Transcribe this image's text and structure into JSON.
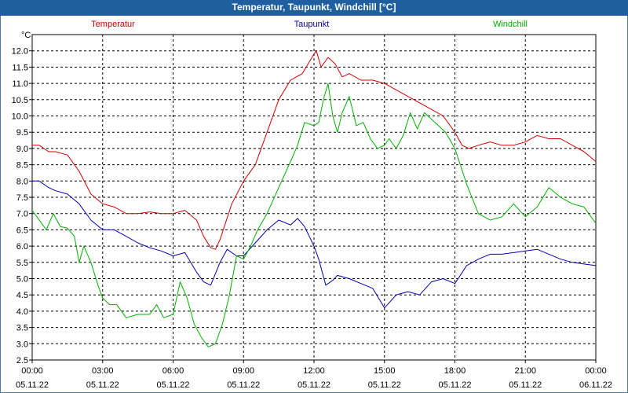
{
  "window": {
    "title": "Temperatur, Taupunkt, Windchill [°C]"
  },
  "chart_data": {
    "type": "line",
    "title": "Temperatur, Taupunkt, Windchill [°C]",
    "ylabel": "°C",
    "ylim": [
      2.5,
      12.5
    ],
    "xlim": [
      0,
      24
    ],
    "grid": true,
    "legend_placement": "top",
    "y_ticks": [
      "2.5",
      "3.0",
      "3.5",
      "4.0",
      "4.5",
      "5.0",
      "5.5",
      "6.0",
      "6.5",
      "7.0",
      "7.5",
      "8.0",
      "8.5",
      "9.0",
      "9.5",
      "10.0",
      "10.5",
      "11.0",
      "11.5",
      "12.0"
    ],
    "x_ticks": [
      {
        "time": "00:00",
        "date": "05.11.22"
      },
      {
        "time": "03:00",
        "date": "05.11.22"
      },
      {
        "time": "06:00",
        "date": "05.11.22"
      },
      {
        "time": "09:00",
        "date": "05.11.22"
      },
      {
        "time": "12:00",
        "date": "05.11.22"
      },
      {
        "time": "15:00",
        "date": "05.11.22"
      },
      {
        "time": "18:00",
        "date": "05.11.22"
      },
      {
        "time": "21:00",
        "date": "05.11.22"
      },
      {
        "time": "00:00",
        "date": "06.11.22"
      }
    ],
    "series": [
      {
        "name": "Temperatur",
        "color": "#d00000",
        "x": [
          0,
          0.3,
          0.7,
          1.0,
          1.5,
          2.0,
          2.5,
          3.0,
          3.5,
          4.0,
          4.5,
          5.0,
          5.5,
          6.0,
          6.5,
          7.0,
          7.3,
          7.6,
          7.8,
          8.0,
          8.5,
          9.0,
          9.5,
          10.0,
          10.5,
          11.0,
          11.5,
          12.0,
          12.1,
          12.3,
          12.6,
          12.9,
          13.2,
          13.5,
          14.0,
          14.5,
          15.0,
          15.5,
          16.0,
          16.5,
          17.0,
          17.5,
          18.0,
          18.3,
          18.6,
          19.0,
          19.5,
          20.0,
          20.5,
          21.0,
          21.5,
          22.0,
          22.5,
          23.0,
          23.5,
          24.0
        ],
        "values": [
          9.1,
          9.1,
          8.9,
          8.9,
          8.8,
          8.3,
          7.6,
          7.3,
          7.2,
          7.0,
          7.0,
          7.05,
          7.0,
          7.0,
          7.1,
          6.8,
          6.3,
          5.95,
          5.9,
          6.2,
          7.3,
          8.0,
          8.5,
          9.5,
          10.5,
          11.1,
          11.3,
          11.9,
          12.0,
          11.5,
          11.8,
          11.6,
          11.2,
          11.3,
          11.1,
          11.1,
          11.0,
          10.8,
          10.6,
          10.4,
          10.2,
          10.0,
          9.5,
          9.1,
          9.0,
          9.1,
          9.2,
          9.1,
          9.1,
          9.2,
          9.4,
          9.3,
          9.3,
          9.1,
          8.9,
          8.6
        ]
      },
      {
        "name": "Taupunkt",
        "color": "#0000b0",
        "x": [
          0,
          0.3,
          0.7,
          1.0,
          1.5,
          2.0,
          2.5,
          3.0,
          3.5,
          4.0,
          4.5,
          5.0,
          5.5,
          6.0,
          6.5,
          7.0,
          7.3,
          7.6,
          8.0,
          8.3,
          8.7,
          9.0,
          9.5,
          10.0,
          10.5,
          11.0,
          11.3,
          11.6,
          12.0,
          12.2,
          12.5,
          12.8,
          13.0,
          13.5,
          14.0,
          14.5,
          15.0,
          15.5,
          16.0,
          16.5,
          17.0,
          17.5,
          18.0,
          18.5,
          19.0,
          19.5,
          20.0,
          20.5,
          21.0,
          21.5,
          22.0,
          22.5,
          23.0,
          23.5,
          24.0
        ],
        "values": [
          8.0,
          8.0,
          7.8,
          7.7,
          7.6,
          7.3,
          6.8,
          6.5,
          6.5,
          6.3,
          6.1,
          5.95,
          5.85,
          5.7,
          5.8,
          5.2,
          4.9,
          4.8,
          5.5,
          5.9,
          5.7,
          5.7,
          6.1,
          6.5,
          6.8,
          6.65,
          6.85,
          6.6,
          6.0,
          5.6,
          4.8,
          4.95,
          5.1,
          5.0,
          4.85,
          4.7,
          4.1,
          4.5,
          4.6,
          4.5,
          4.9,
          5.0,
          4.85,
          5.4,
          5.6,
          5.75,
          5.75,
          5.8,
          5.85,
          5.9,
          5.75,
          5.6,
          5.5,
          5.45,
          5.4
        ]
      },
      {
        "name": "Windchill",
        "color": "#00b000",
        "x": [
          0,
          0.3,
          0.6,
          0.9,
          1.2,
          1.5,
          1.8,
          2.0,
          2.2,
          2.5,
          2.8,
          3.0,
          3.3,
          3.6,
          4.0,
          4.5,
          5.0,
          5.3,
          5.6,
          6.0,
          6.3,
          6.6,
          6.9,
          7.2,
          7.5,
          7.8,
          8.1,
          8.4,
          8.7,
          9.0,
          9.3,
          9.6,
          10.0,
          10.5,
          11.0,
          11.3,
          11.6,
          12.0,
          12.2,
          12.4,
          12.6,
          12.8,
          13.0,
          13.2,
          13.5,
          13.8,
          14.1,
          14.4,
          14.7,
          15.0,
          15.2,
          15.5,
          15.8,
          16.1,
          16.4,
          16.7,
          17.0,
          17.3,
          17.6,
          18.0,
          18.5,
          19.0,
          19.5,
          20.0,
          20.5,
          21.0,
          21.5,
          22.0,
          22.5,
          23.0,
          23.5,
          24.0
        ],
        "values": [
          7.1,
          6.8,
          6.5,
          7.0,
          6.6,
          6.55,
          6.3,
          5.5,
          6.0,
          5.5,
          4.8,
          4.4,
          4.2,
          4.2,
          3.8,
          3.9,
          3.9,
          4.2,
          3.8,
          3.9,
          4.9,
          4.4,
          3.6,
          3.2,
          2.9,
          3.0,
          3.6,
          4.5,
          5.7,
          5.6,
          6.0,
          6.5,
          7.0,
          7.8,
          8.6,
          9.1,
          9.8,
          9.7,
          9.8,
          10.5,
          11.0,
          10.0,
          9.5,
          10.1,
          10.6,
          9.7,
          9.8,
          9.3,
          9.0,
          9.1,
          9.3,
          9.0,
          9.4,
          10.1,
          9.6,
          10.1,
          9.9,
          9.7,
          9.5,
          9.0,
          7.9,
          7.0,
          6.8,
          6.9,
          7.3,
          6.9,
          7.2,
          7.8,
          7.5,
          7.3,
          7.2,
          6.7
        ]
      }
    ]
  }
}
